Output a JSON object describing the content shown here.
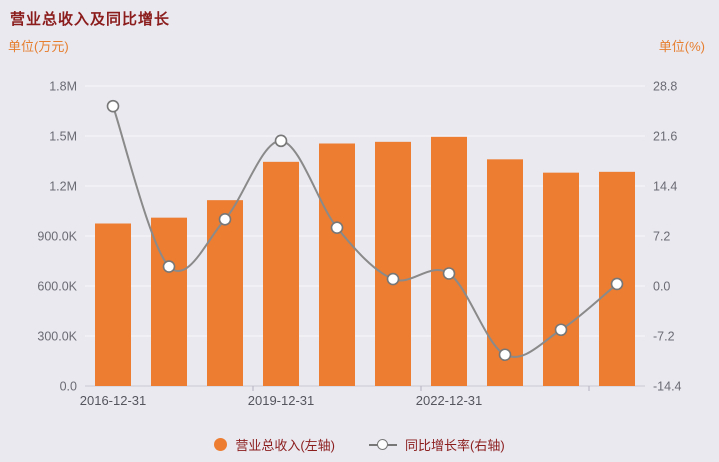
{
  "chart_data": {
    "type": "combo",
    "title": "营业总收入及同比增长",
    "background_color": "#eae9f0",
    "grid": true,
    "legend_position": "bottom",
    "x_axis": {
      "tick_labels": [
        {
          "index": 0,
          "label": "2016-12-31"
        },
        {
          "index": 3,
          "label": "2019-12-31"
        },
        {
          "index": 6,
          "label": "2022-12-31"
        }
      ]
    },
    "left_axis": {
      "label": "单位(万元)",
      "min": 0,
      "max": 1800000,
      "ticks": [
        "0.0",
        "300.0K",
        "600.0K",
        "900.0K",
        "1.2M",
        "1.5M",
        "1.8M"
      ]
    },
    "right_axis": {
      "label": "单位(%)",
      "min": -14.4,
      "max": 28.8,
      "ticks": [
        "-14.4",
        "-7.2",
        "0.0",
        "7.2",
        "14.4",
        "21.6",
        "28.8"
      ]
    },
    "bar_series": {
      "name": "营业总收入(左轴)",
      "type": "bar",
      "axis": "left",
      "color": "#ed7d31",
      "values": [
        975000,
        1010000,
        1115000,
        1345000,
        1455000,
        1465000,
        1495000,
        1360000,
        1280000,
        1285000
      ]
    },
    "line_series": {
      "name": "同比增长率(右轴)",
      "type": "line",
      "axis": "right",
      "color": "#8a8a8a",
      "marker_fill": "#ffffff",
      "marker_stroke": "#777777",
      "values": [
        25.9,
        2.8,
        9.6,
        20.9,
        8.4,
        1.0,
        1.8,
        -9.9,
        -6.3,
        0.3
      ]
    }
  }
}
